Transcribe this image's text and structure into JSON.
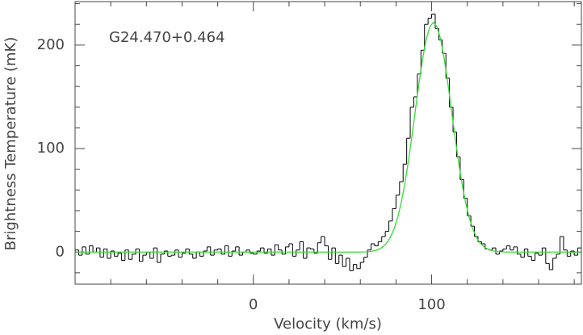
{
  "chart_data": {
    "type": "step",
    "annotation": "G24.470+0.464",
    "xlabel": "Velocity (km/s)",
    "ylabel": "Brightness Temperature (mK)",
    "xlim": [
      -100,
      184
    ],
    "ylim": [
      -31,
      242
    ],
    "xticks": [
      0,
      100
    ],
    "yticks": [
      0,
      100,
      200
    ],
    "xticks_minor": [
      -80,
      -60,
      -40,
      -20,
      20,
      40,
      60,
      80,
      120,
      140,
      160,
      180
    ],
    "yticks_minor": [
      -20,
      20,
      40,
      60,
      80,
      120,
      140,
      160,
      180,
      220,
      240
    ],
    "x": [
      -99,
      -97,
      -95,
      -93,
      -91,
      -89,
      -87,
      -85,
      -83,
      -81,
      -79,
      -77,
      -75,
      -73,
      -71,
      -69,
      -67,
      -65,
      -63,
      -61,
      -59,
      -57,
      -55,
      -53,
      -51,
      -49,
      -47,
      -45,
      -43,
      -41,
      -39,
      -37,
      -35,
      -33,
      -31,
      -29,
      -27,
      -25,
      -23,
      -21,
      -19,
      -17,
      -15,
      -13,
      -11,
      -9,
      -7,
      -5,
      -3,
      -1,
      1,
      3,
      5,
      7,
      9,
      11,
      13,
      15,
      17,
      19,
      21,
      23,
      25,
      27,
      29,
      31,
      33,
      35,
      37,
      39,
      41,
      43,
      45,
      47,
      49,
      51,
      53,
      55,
      57,
      59,
      61,
      63,
      65,
      67,
      69,
      71,
      73,
      75,
      77,
      79,
      81,
      83,
      85,
      87,
      89,
      91,
      93,
      95,
      97,
      99,
      101,
      103,
      105,
      107,
      109,
      111,
      113,
      115,
      117,
      119,
      121,
      123,
      125,
      127,
      129,
      131,
      133,
      135,
      137,
      139,
      141,
      143,
      145,
      147,
      149,
      151,
      153,
      155,
      157,
      159,
      161,
      163,
      165,
      167,
      169,
      171,
      173,
      175,
      177,
      179,
      181,
      183
    ],
    "series": [
      {
        "color": "#000000",
        "values": [
          2,
          -3,
          5,
          -2,
          6,
          0,
          4,
          -5,
          3,
          -6,
          1,
          -4,
          -1,
          -8,
          2,
          -7,
          -2,
          3,
          -9,
          -3,
          0,
          -6,
          4,
          -10,
          -2,
          1,
          -4,
          -3,
          2,
          -5,
          -1,
          3,
          -2,
          -6,
          0,
          -4,
          1,
          5,
          -3,
          2,
          3,
          -2,
          6,
          -4,
          1,
          5,
          -3,
          0,
          2,
          -1,
          -2,
          1,
          4,
          -1,
          3,
          -3,
          7,
          2,
          -2,
          5,
          8,
          -4,
          2,
          10,
          -6,
          4,
          3,
          -1,
          9,
          15,
          6,
          -7,
          4,
          -11,
          -3,
          -14,
          -6,
          -18,
          -12,
          -16,
          -10,
          -5,
          2,
          8,
          6,
          10,
          15,
          20,
          30,
          42,
          55,
          68,
          85,
          110,
          140,
          150,
          172,
          195,
          220,
          226,
          230,
          216,
          205,
          192,
          168,
          140,
          116,
          92,
          70,
          52,
          35,
          25,
          15,
          10,
          8,
          3,
          2,
          4,
          -2,
          1,
          3,
          6,
          2,
          5,
          -2,
          -5,
          3,
          -4,
          -8,
          -1,
          -3,
          4,
          -11,
          -17,
          -6,
          -2,
          15,
          2,
          -4,
          1,
          -3,
          4
        ]
      },
      {
        "color": "#33dd33",
        "values": [
          0,
          0,
          0,
          0,
          0,
          0,
          0,
          0,
          0,
          0,
          0,
          0,
          0,
          0,
          0,
          0,
          0,
          0,
          0,
          0,
          0,
          0,
          0,
          0,
          0,
          0,
          0,
          0,
          0,
          0,
          0,
          0,
          0,
          0,
          0,
          0,
          0,
          0,
          0,
          0,
          0,
          0,
          0,
          0,
          0,
          0,
          0,
          0,
          0,
          0,
          0,
          0,
          0,
          0,
          0,
          0,
          0,
          0,
          0,
          0,
          0,
          0,
          0,
          0,
          0,
          0,
          0,
          0,
          0,
          0,
          0,
          0,
          0,
          0,
          0,
          0,
          0,
          0,
          0,
          0,
          0.1,
          0.2,
          0.5,
          1.0,
          1.8,
          3.2,
          5.5,
          9.2,
          14.7,
          22.7,
          33.7,
          48.2,
          66.5,
          88.2,
          112.6,
          138.6,
          164.2,
          187.3,
          205.9,
          217.8,
          222,
          217.8,
          205.9,
          187.3,
          164.2,
          138.6,
          112.6,
          88.2,
          66.5,
          48.2,
          33.7,
          22.7,
          14.7,
          9.2,
          5.5,
          3.2,
          1.8,
          1.0,
          0.5,
          0.2,
          0.1,
          0,
          0,
          0,
          0,
          0,
          0,
          0,
          0,
          0,
          0,
          0,
          0,
          0,
          0,
          0,
          0,
          0,
          0,
          0,
          0,
          0
        ]
      }
    ]
  }
}
